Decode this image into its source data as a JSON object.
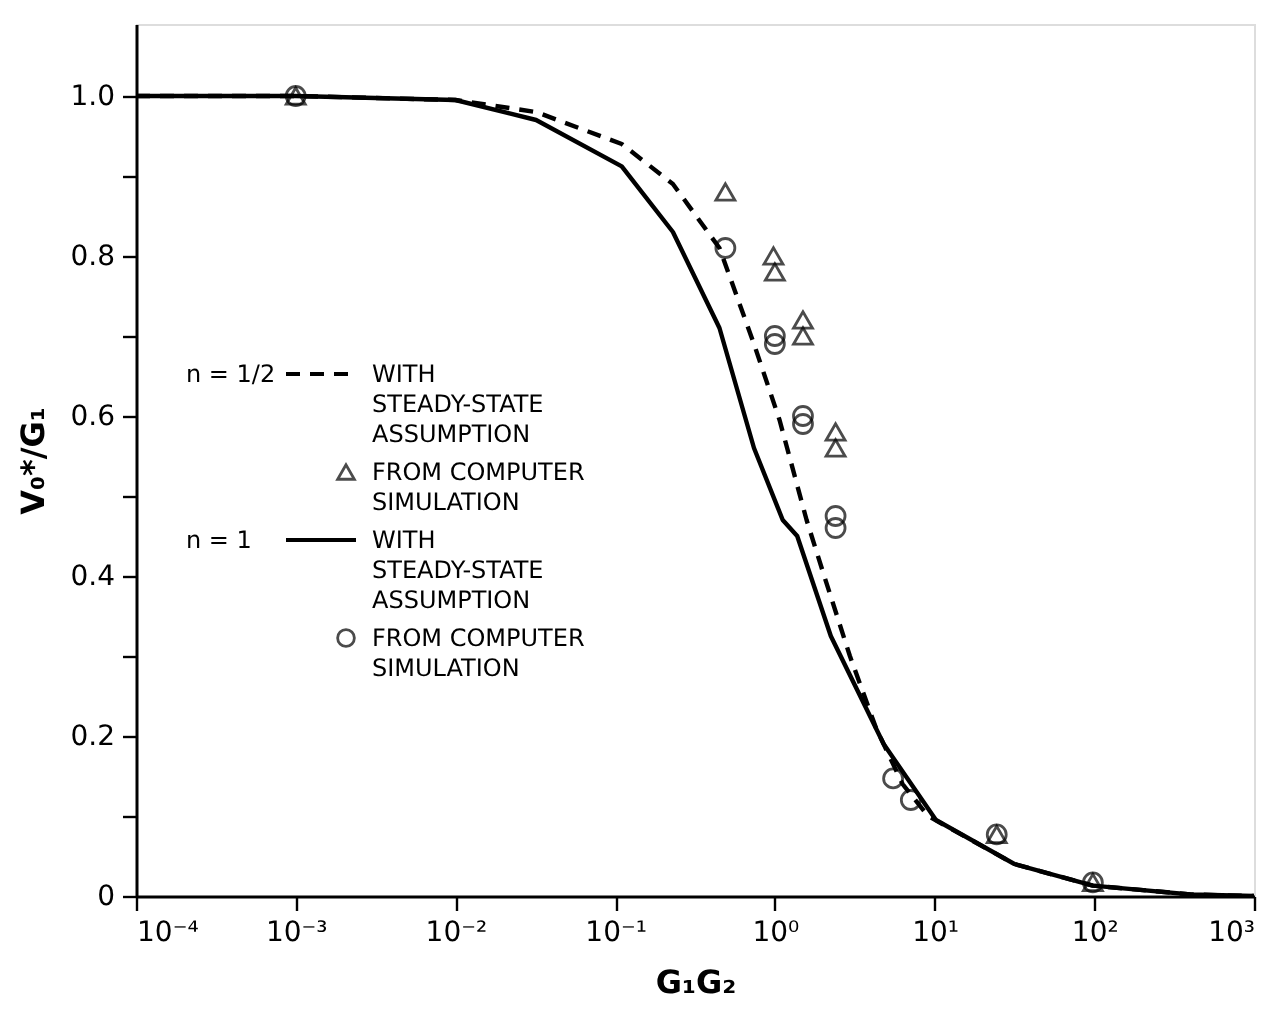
{
  "chart_data": {
    "type": "line",
    "xlabel": "G₁G₂",
    "ylabel": "V₀*/G₁",
    "log": "x",
    "xlim": [
      0.0001,
      1000
    ],
    "ylim": [
      0,
      1.09
    ],
    "xticks": [
      {
        "value": 0.0001,
        "label": "10⁻⁴"
      },
      {
        "value": 0.001,
        "label": "10⁻³"
      },
      {
        "value": 0.01,
        "label": "10⁻²"
      },
      {
        "value": 0.1,
        "label": "10⁻¹"
      },
      {
        "value": 1,
        "label": "10⁰"
      },
      {
        "value": 10,
        "label": "10¹"
      },
      {
        "value": 100,
        "label": "10²"
      },
      {
        "value": 1000,
        "label": "10³"
      }
    ],
    "yticks": [
      0,
      {
        "value": 0.1,
        "label": null
      },
      0.2,
      {
        "value": 0.3,
        "label": null
      },
      0.4,
      {
        "value": 0.5,
        "label": null
      },
      0.6,
      {
        "value": 0.7,
        "label": null
      },
      0.8,
      {
        "value": 0.9,
        "label": null
      },
      {
        "value": 1,
        "label": "1.0"
      }
    ],
    "grid": false,
    "legend": "left",
    "annotations": [
      "n = 1/2",
      "n = 1"
    ],
    "series": [
      {
        "name": "WITH STEADY-STATE ASSUMPTION",
        "line_style": "dashed",
        "color": "#000000",
        "x": [
          0.0001,
          0.001,
          0.01,
          0.032,
          0.11,
          0.23,
          0.45,
          0.74,
          1.07,
          1.58,
          2.0,
          2.95,
          4.3,
          6.3,
          9.1,
          31.6,
          98,
          400,
          1000
        ],
        "values": [
          1.0,
          1.0,
          0.995,
          0.98,
          0.94,
          0.89,
          0.81,
          0.69,
          0.595,
          0.47,
          0.405,
          0.3,
          0.21,
          0.14,
          0.1,
          0.04,
          0.013,
          0.002,
          0
        ]
      },
      {
        "name": "FROM COMPUTER SIMULATION",
        "type": "scatter",
        "marker": "triangle",
        "color": "#000000",
        "x": [
          0.001,
          0.49,
          0.98,
          1.0,
          1.5,
          1.5,
          2.4,
          2.4,
          24.5,
          98
        ],
        "values": [
          1.0,
          0.88,
          0.8,
          0.78,
          0.72,
          0.7,
          0.58,
          0.56,
          0.077,
          0.017
        ]
      },
      {
        "name": "WITH STEADY-STATE ASSUMPTION",
        "line_style": "solid",
        "color": "#000000",
        "x": [
          0.0001,
          0.001,
          0.01,
          0.032,
          0.11,
          0.23,
          0.45,
          0.74,
          1.12,
          1.38,
          2.24,
          4.8,
          10.2,
          31.6,
          98,
          400,
          1000
        ],
        "values": [
          1.0,
          1.0,
          0.995,
          0.97,
          0.912,
          0.83,
          0.71,
          0.56,
          0.47,
          0.45,
          0.325,
          0.19,
          0.095,
          0.04,
          0.013,
          0.002,
          0
        ]
      },
      {
        "name": "FROM COMPUTER SIMULATION",
        "type": "scatter",
        "marker": "circle",
        "color": "#000000",
        "x": [
          0.001,
          0.49,
          1.0,
          1.0,
          1.5,
          1.5,
          2.4,
          2.4,
          5.5,
          7.1,
          24.5,
          98
        ],
        "values": [
          1.0,
          0.81,
          0.7,
          0.69,
          0.6,
          0.59,
          0.475,
          0.46,
          0.147,
          0.12,
          0.077,
          0.017
        ]
      }
    ]
  }
}
